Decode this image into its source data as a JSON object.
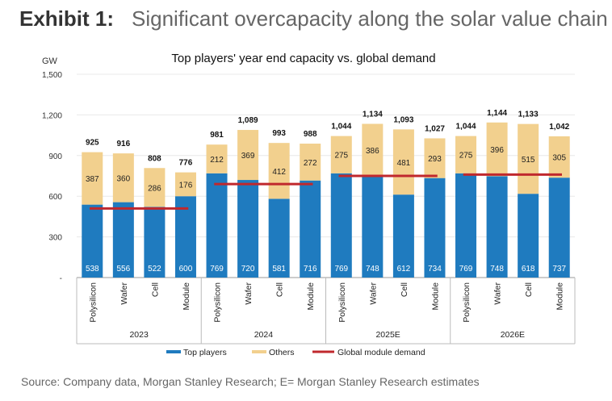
{
  "exhibit": {
    "label": "Exhibit 1:",
    "title": "Significant overcapacity along the solar value chain"
  },
  "source": "Source: Company data, Morgan Stanley Research; E= Morgan Stanley Research estimates",
  "chart_data": {
    "type": "bar",
    "stacked": true,
    "title": "Top players' year end capacity vs. global demand",
    "ylabel": "GW",
    "ylim": [
      0,
      1500
    ],
    "yticks": [
      {
        "value": 0,
        "label": "-"
      },
      {
        "value": 300,
        "label": "300"
      },
      {
        "value": 600,
        "label": "600"
      },
      {
        "value": 900,
        "label": "900"
      },
      {
        "value": 1200,
        "label": "1,200"
      },
      {
        "value": 1500,
        "label": "1,500"
      }
    ],
    "groups": [
      {
        "name": "2023",
        "categories": [
          "Polysilicon",
          "Wafer",
          "Cell",
          "Module"
        ]
      },
      {
        "name": "2024",
        "categories": [
          "Polysilicon",
          "Wafer",
          "Cell",
          "Module"
        ]
      },
      {
        "name": "2025E",
        "categories": [
          "Polysilicon",
          "Wafer",
          "Cell",
          "Module"
        ]
      },
      {
        "name": "2026E",
        "categories": [
          "Polysilicon",
          "Wafer",
          "Cell",
          "Module"
        ]
      }
    ],
    "series": [
      {
        "name": "Top players",
        "color": "#1f7bbf",
        "values": [
          538,
          556,
          522,
          600,
          769,
          720,
          581,
          716,
          769,
          748,
          612,
          734,
          769,
          748,
          618,
          737
        ]
      },
      {
        "name": "Others",
        "color": "#f2d08e",
        "values": [
          387,
          360,
          286,
          176,
          212,
          369,
          412,
          272,
          275,
          386,
          481,
          293,
          275,
          396,
          515,
          305
        ]
      }
    ],
    "totals": [
      "925",
      "916",
      "808",
      "776",
      "981",
      "1,089",
      "993",
      "988",
      "1,044",
      "1,134",
      "1,093",
      "1,027",
      "1,044",
      "1,144",
      "1,133",
      "1,042"
    ],
    "demand": {
      "name": "Global module demand",
      "color": "#c0282d",
      "values": [
        510,
        690,
        750,
        760
      ]
    },
    "grid": true,
    "legend_position": "bottom"
  }
}
